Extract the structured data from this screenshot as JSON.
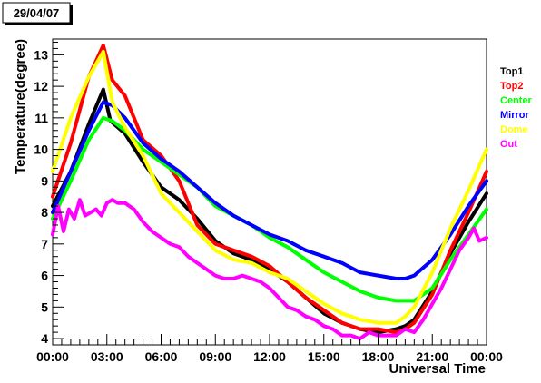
{
  "date_label": "29/04/07",
  "chart_data": {
    "type": "line",
    "title": "",
    "xlabel": "Universal Time",
    "ylabel": "Temperature(degree)",
    "xlim": [
      0,
      24
    ],
    "ylim": [
      3.8,
      13.5
    ],
    "x_ticks": [
      0,
      3,
      6,
      9,
      12,
      15,
      18,
      21,
      24
    ],
    "x_tick_labels": [
      "00:00",
      "03:00",
      "06:00",
      "09:00",
      "12:00",
      "15:00",
      "18:00",
      "21:00",
      "00:00"
    ],
    "y_ticks": [
      4,
      5,
      6,
      7,
      8,
      9,
      10,
      11,
      12,
      13
    ],
    "y_tick_labels": [
      "4",
      "5",
      "6",
      "7",
      "8",
      "9",
      "10",
      "11",
      "12",
      "13"
    ],
    "grid": false,
    "legend_position": "right",
    "series": [
      {
        "name": "Top1",
        "color": "#000000",
        "x": [
          0,
          1,
          2,
          2.8,
          3.2,
          4,
          5,
          6,
          7,
          8,
          9,
          10,
          11,
          12,
          13,
          14,
          15,
          16,
          17,
          18,
          19,
          19.5,
          20,
          21,
          22,
          23,
          24
        ],
        "y": [
          8.2,
          9.3,
          10.8,
          11.9,
          10.9,
          10.5,
          9.6,
          8.8,
          8.4,
          7.8,
          7.1,
          6.7,
          6.5,
          6.2,
          5.8,
          5.3,
          4.8,
          4.5,
          4.3,
          4.2,
          4.3,
          4.4,
          4.6,
          5.5,
          6.7,
          7.7,
          8.6
        ]
      },
      {
        "name": "Top2",
        "color": "#ff0000",
        "x": [
          0,
          1,
          2,
          2.8,
          3.3,
          4,
          5,
          6,
          7,
          8,
          9,
          10,
          11,
          12,
          13,
          14,
          15,
          16,
          17,
          18,
          19,
          19.5,
          20,
          21,
          22,
          23,
          24
        ],
        "y": [
          8.5,
          10.2,
          12.3,
          13.3,
          12.2,
          11.7,
          10.3,
          9.8,
          9.0,
          7.6,
          7.0,
          6.8,
          6.6,
          6.3,
          5.8,
          5.3,
          4.9,
          4.5,
          4.3,
          4.3,
          4.2,
          4.3,
          4.5,
          5.4,
          6.8,
          8.0,
          9.3
        ]
      },
      {
        "name": "Center",
        "color": "#00ff00",
        "x": [
          0,
          1,
          2,
          2.8,
          3.3,
          4,
          5,
          6,
          7,
          8,
          9,
          10,
          11,
          12,
          13,
          14,
          15,
          16,
          17,
          18,
          19,
          19.5,
          20,
          21,
          22,
          23,
          24
        ],
        "y": [
          7.8,
          9.0,
          10.3,
          11.0,
          10.9,
          10.6,
          10.0,
          9.6,
          9.2,
          8.8,
          8.2,
          7.9,
          7.6,
          7.2,
          6.9,
          6.5,
          6.1,
          5.8,
          5.5,
          5.3,
          5.2,
          5.2,
          5.2,
          5.6,
          6.5,
          7.3,
          8.1
        ]
      },
      {
        "name": "Mirror",
        "color": "#0000ff",
        "x": [
          0,
          1,
          2,
          2.8,
          3.3,
          4,
          5,
          6,
          7,
          8,
          9,
          10,
          11,
          12,
          13,
          14,
          15,
          16,
          17,
          18,
          19,
          19.5,
          20,
          21,
          22,
          23,
          24
        ],
        "y": [
          8.0,
          9.3,
          10.6,
          11.5,
          11.4,
          11.0,
          10.2,
          9.7,
          9.3,
          8.8,
          8.3,
          7.9,
          7.6,
          7.3,
          7.1,
          6.8,
          6.6,
          6.4,
          6.1,
          6.0,
          5.9,
          5.9,
          6.0,
          6.5,
          7.3,
          8.2,
          9.0
        ]
      },
      {
        "name": "Dome",
        "color": "#ffff00",
        "x": [
          0,
          1,
          2,
          2.8,
          3.3,
          4,
          5,
          6,
          7,
          8,
          9,
          10,
          11,
          12,
          13,
          14,
          15,
          16,
          17,
          18,
          19,
          19.5,
          20,
          21,
          22,
          23,
          24
        ],
        "y": [
          9.3,
          11.0,
          12.3,
          13.1,
          11.5,
          10.7,
          9.8,
          8.6,
          8.0,
          7.4,
          6.8,
          6.5,
          6.4,
          6.1,
          5.9,
          5.5,
          5.1,
          4.8,
          4.6,
          4.5,
          4.5,
          4.7,
          5.0,
          6.1,
          7.5,
          8.7,
          10.0
        ]
      },
      {
        "name": "Out",
        "color": "#ff00ff",
        "x": [
          0,
          0.3,
          0.6,
          0.9,
          1.2,
          1.5,
          1.8,
          2.1,
          2.4,
          2.7,
          3.0,
          3.3,
          3.6,
          4.0,
          4.5,
          5.0,
          5.5,
          6.0,
          6.5,
          7.0,
          7.5,
          8.0,
          8.5,
          9.0,
          9.5,
          10,
          10.5,
          11,
          11.5,
          12,
          12.5,
          13,
          13.5,
          14,
          14.5,
          15,
          15.5,
          16,
          16.5,
          17,
          17.5,
          18,
          18.5,
          19,
          19.5,
          20,
          20.5,
          21,
          21.5,
          22,
          22.5,
          23,
          23.3,
          23.6,
          24
        ],
        "y": [
          7.3,
          8.2,
          7.4,
          8.1,
          7.8,
          8.4,
          7.9,
          8.0,
          8.1,
          7.9,
          8.3,
          8.4,
          8.3,
          8.3,
          8.1,
          7.7,
          7.4,
          7.2,
          7.0,
          6.9,
          6.6,
          6.4,
          6.2,
          6.0,
          5.9,
          5.9,
          6.0,
          5.9,
          5.8,
          5.6,
          5.3,
          5.0,
          4.9,
          4.7,
          4.6,
          4.4,
          4.3,
          4.1,
          4.1,
          4.0,
          4.2,
          4.1,
          4.1,
          4.1,
          4.3,
          4.2,
          4.6,
          5.1,
          5.6,
          6.2,
          6.8,
          7.2,
          7.5,
          7.1,
          7.2
        ]
      }
    ]
  }
}
